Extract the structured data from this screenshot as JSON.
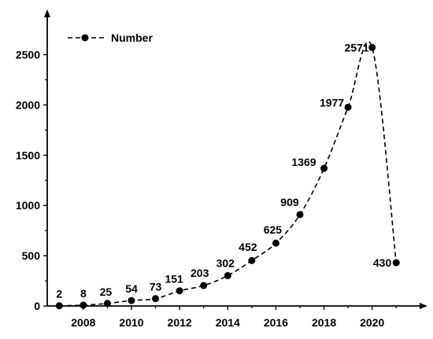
{
  "chart_data": {
    "type": "line",
    "x": [
      2007,
      2008,
      2009,
      2010,
      2011,
      2012,
      2013,
      2014,
      2015,
      2016,
      2017,
      2018,
      2019,
      2020,
      2021
    ],
    "series": [
      {
        "name": "Number",
        "values": [
          2,
          8,
          25,
          54,
          73,
          151,
          203,
          302,
          452,
          625,
          909,
          1369,
          1977,
          2571,
          430
        ],
        "line_style": "dashed",
        "marker": "filled-circle",
        "color": "#000000"
      }
    ],
    "data_labels": [
      "2",
      "8",
      "25",
      "54",
      "73",
      "151",
      "203",
      "302",
      "452",
      "625",
      "909",
      "1369",
      "1977",
      "2571",
      "430"
    ],
    "xticks": [
      2008,
      2010,
      2012,
      2014,
      2016,
      2018,
      2020
    ],
    "xtick_labels": [
      "2008",
      "2010",
      "2012",
      "2014",
      "2016",
      "2018",
      "2020"
    ],
    "yticks": [
      0,
      500,
      1000,
      1500,
      2000,
      2500
    ],
    "ytick_labels": [
      "0",
      "500",
      "1000",
      "1500",
      "2000",
      "2500"
    ],
    "xlim": [
      2006.5,
      2022.3
    ],
    "ylim": [
      0,
      2950
    ],
    "title": "",
    "xlabel": "",
    "ylabel": "",
    "legend": {
      "position": "top-left",
      "label": "Number"
    },
    "grid": false
  }
}
